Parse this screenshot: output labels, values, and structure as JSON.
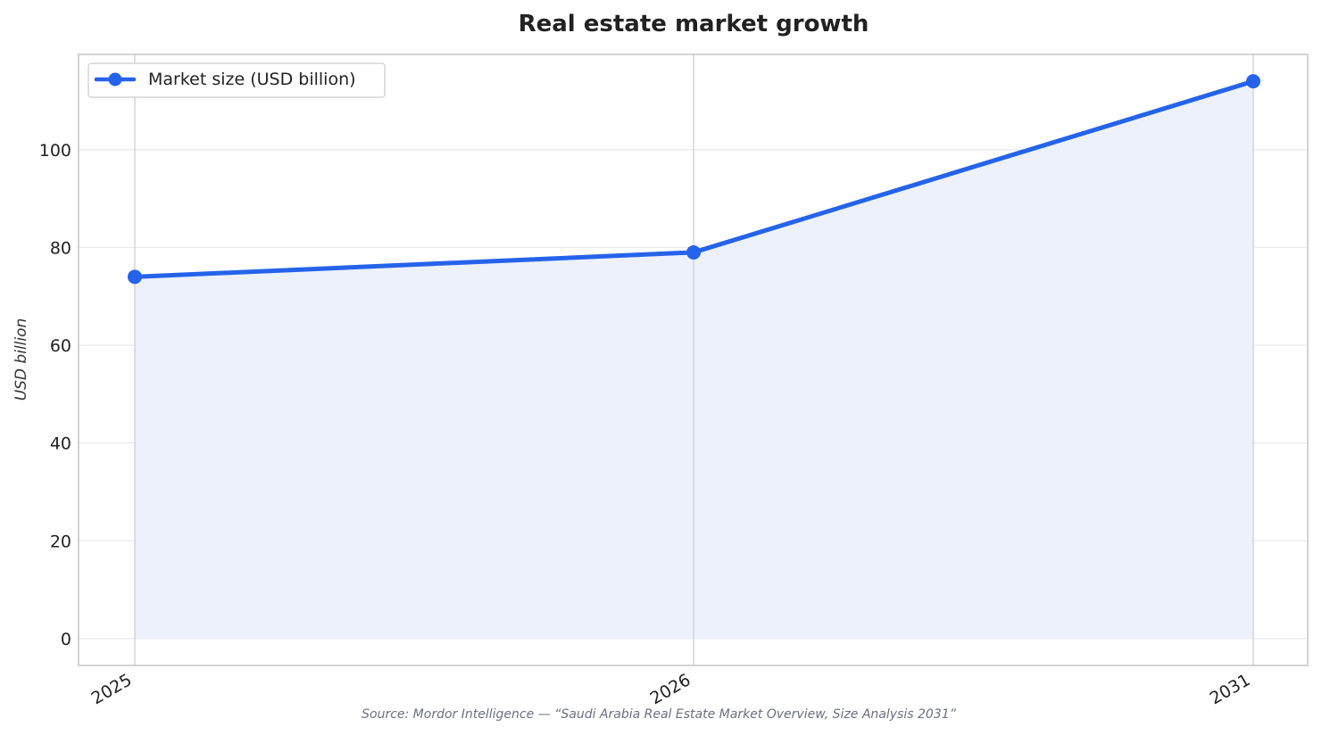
{
  "chart_data": {
    "type": "area",
    "title": "Real estate market growth",
    "xlabel": "",
    "ylabel": "USD billion",
    "categories": [
      "2025",
      "2026",
      "2031"
    ],
    "x": [
      2025,
      2026,
      2031
    ],
    "series": [
      {
        "name": "Market size (USD billion)",
        "values": [
          74.0,
          79.0,
          114.0
        ]
      }
    ],
    "ylim": [
      -5.5,
      119.5
    ],
    "yticks": [
      0,
      20,
      40,
      60,
      80,
      100
    ],
    "grid": true,
    "legend": "top-left",
    "source": "Source: Mordor Intelligence — “Saudi Arabia Real Estate Market Overview, Size Analysis 2031”",
    "colors": {
      "line": "#2563eb",
      "fill": "#ecf1fc",
      "grid": "#e8e8ee",
      "frame": "#c8c8cc"
    }
  }
}
